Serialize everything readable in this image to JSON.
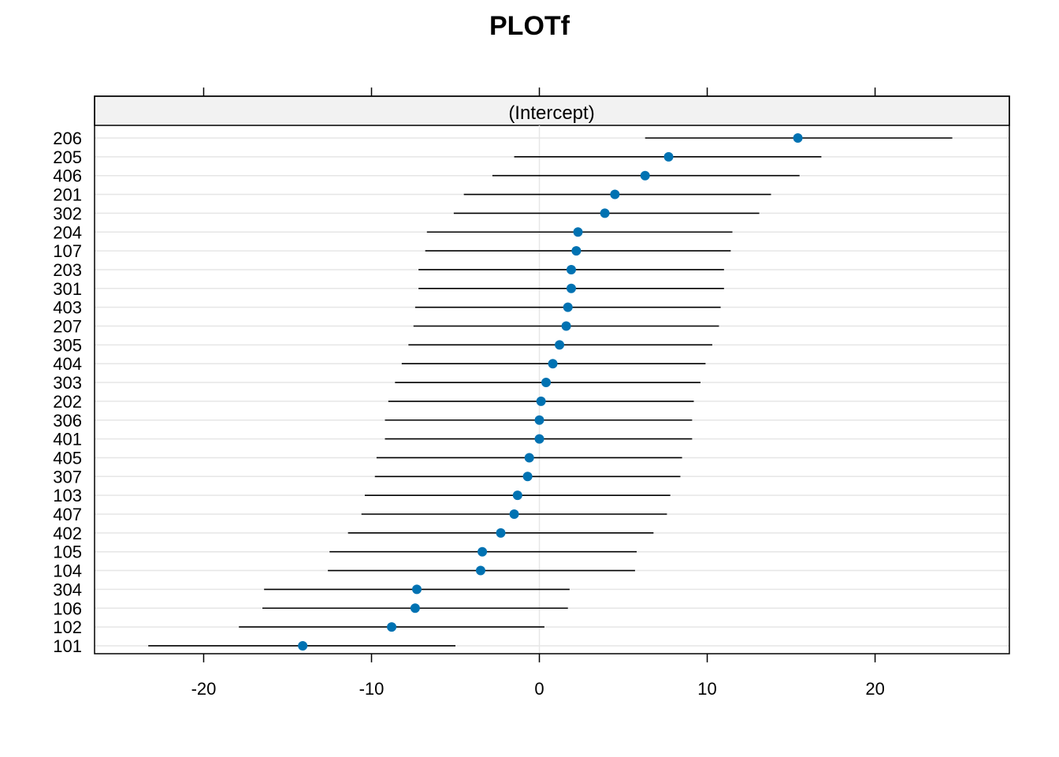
{
  "chart_data": {
    "type": "dotplot",
    "title": "PLOTf",
    "panel_label": "(Intercept)",
    "xlim": [
      -26.5,
      28
    ],
    "x_ticks": [
      -20,
      -10,
      0,
      10,
      20
    ],
    "grid": true,
    "colors": {
      "point": "#0072B2",
      "interval": "#000000",
      "grid": "#e6e6e6",
      "strip": "#f2f2f2"
    },
    "categories": [
      "206",
      "205",
      "406",
      "201",
      "302",
      "204",
      "107",
      "203",
      "301",
      "403",
      "207",
      "305",
      "404",
      "303",
      "202",
      "306",
      "401",
      "405",
      "307",
      "103",
      "407",
      "402",
      "105",
      "104",
      "304",
      "106",
      "102",
      "101"
    ],
    "estimates": [
      15.4,
      7.7,
      6.3,
      4.5,
      3.9,
      2.3,
      2.2,
      1.9,
      1.9,
      1.7,
      1.6,
      1.2,
      0.8,
      0.4,
      0.1,
      0.0,
      0.0,
      -0.6,
      -0.7,
      -1.3,
      -1.5,
      -2.3,
      -3.4,
      -3.5,
      -7.3,
      -7.4,
      -8.8,
      -14.1
    ],
    "lower": [
      6.3,
      -1.5,
      -2.8,
      -4.5,
      -5.1,
      -6.7,
      -6.8,
      -7.2,
      -7.2,
      -7.4,
      -7.5,
      -7.8,
      -8.2,
      -8.6,
      -9.0,
      -9.2,
      -9.2,
      -9.7,
      -9.8,
      -10.4,
      -10.6,
      -11.4,
      -12.5,
      -12.6,
      -16.4,
      -16.5,
      -17.9,
      -23.3
    ],
    "upper": [
      24.6,
      16.8,
      15.5,
      13.8,
      13.1,
      11.5,
      11.4,
      11.0,
      11.0,
      10.8,
      10.7,
      10.3,
      9.9,
      9.6,
      9.2,
      9.1,
      9.1,
      8.5,
      8.4,
      7.8,
      7.6,
      6.8,
      5.8,
      5.7,
      1.8,
      1.7,
      0.3,
      -5.0
    ]
  }
}
